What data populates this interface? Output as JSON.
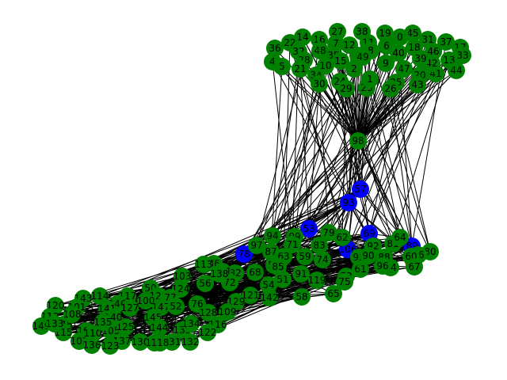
{
  "colors": {
    "background": "#ffffff",
    "edge": "#000000",
    "node_default": "#008000",
    "node_highlight": "#0000ff",
    "node_target": "#ff0000",
    "label": "#000000"
  },
  "graph": {
    "hub_label": "98",
    "top_cluster_labels": [
      "27",
      "38",
      "19",
      "45",
      "0",
      "31",
      "37",
      "17",
      "14",
      "16",
      "7",
      "12",
      "11",
      "6",
      "22",
      "36",
      "32",
      "48",
      "35",
      "8",
      "3",
      "18",
      "46",
      "33",
      "13",
      "40",
      "41",
      "20",
      "44",
      "28",
      "4",
      "5",
      "21",
      "34",
      "10",
      "15",
      "49",
      "9",
      "47",
      "2",
      "30",
      "24",
      "29",
      "23",
      "1",
      "25",
      "26",
      "43",
      "42",
      "39"
    ],
    "blue_labels": [
      "57",
      "93",
      "53",
      "69",
      "78",
      "106",
      "89"
    ],
    "red_labels": [
      "84"
    ],
    "mid_cluster_labels": [
      "79",
      "94",
      "99",
      "97",
      "71",
      "87",
      "62",
      "63",
      "92",
      "81",
      "64",
      "80",
      "59",
      "83",
      "76",
      "60",
      "88",
      "73",
      "61",
      "51",
      "91",
      "74",
      "119",
      "65",
      "75",
      "84",
      "86",
      "67",
      "55",
      "85",
      "82",
      "68",
      "96",
      "95",
      "90"
    ],
    "bottom_cluster_labels": [
      "113",
      "103",
      "111",
      "56",
      "72",
      "138",
      "121",
      "54",
      "142",
      "58",
      "50",
      "117",
      "124",
      "126",
      "77",
      "100",
      "147",
      "52",
      "76",
      "114",
      "143",
      "146",
      "128",
      "116",
      "129",
      "109",
      "145",
      "139",
      "134",
      "141",
      "101",
      "120",
      "112",
      "148",
      "108",
      "115",
      "104",
      "102",
      "110",
      "105",
      "125",
      "137",
      "130",
      "140",
      "144",
      "131",
      "132",
      "122",
      "135",
      "149",
      "136",
      "133",
      "107",
      "123",
      "127",
      "118"
    ]
  }
}
